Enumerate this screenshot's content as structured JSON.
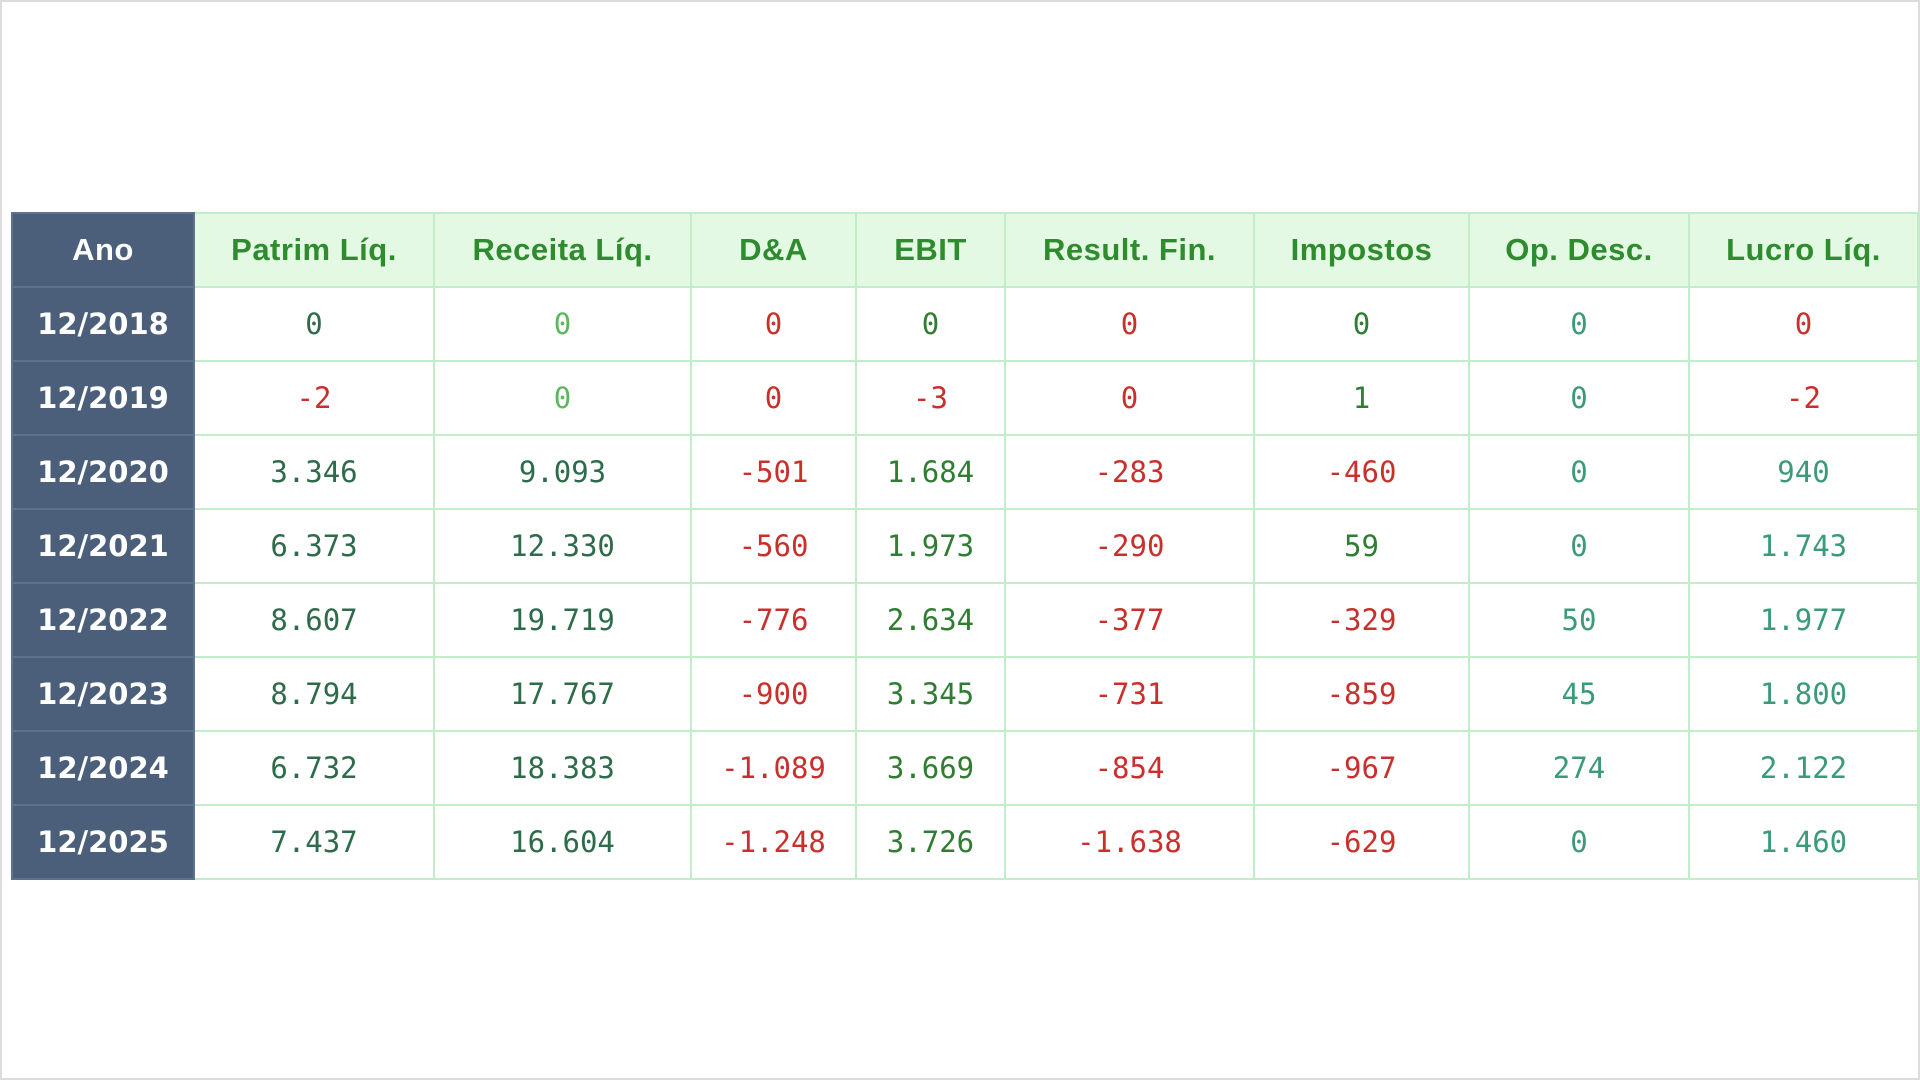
{
  "table": {
    "header": [
      "Ano",
      "Patrim Líq.",
      "Receita Líq.",
      "D&A",
      "EBIT",
      "Result. Fin.",
      "Impostos",
      "Op. Desc.",
      "Lucro Líq."
    ],
    "rows": [
      [
        "12/2018",
        "0",
        "0",
        "0",
        "0",
        "0",
        "0",
        "0",
        "0"
      ],
      [
        "12/2019",
        "-2",
        "0",
        "0",
        "-3",
        "0",
        "1",
        "0",
        "-2"
      ],
      [
        "12/2020",
        "3.346",
        "9.093",
        "-501",
        "1.684",
        "-283",
        "-460",
        "0",
        "940"
      ],
      [
        "12/2021",
        "6.373",
        "12.330",
        "-560",
        "1.973",
        "-290",
        "59",
        "0",
        "1.743"
      ],
      [
        "12/2022",
        "8.607",
        "19.719",
        "-776",
        "2.634",
        "-377",
        "-329",
        "50",
        "1.977"
      ],
      [
        "12/2023",
        "8.794",
        "17.767",
        "-900",
        "3.345",
        "-731",
        "-859",
        "45",
        "1.800"
      ],
      [
        "12/2024",
        "6.732",
        "18.383",
        "-1.089",
        "3.669",
        "-854",
        "-967",
        "274",
        "2.122"
      ],
      [
        "12/2025",
        "7.437",
        "16.604",
        "-1.248",
        "3.726",
        "-1.638",
        "-629",
        "0",
        "1.460"
      ]
    ]
  }
}
